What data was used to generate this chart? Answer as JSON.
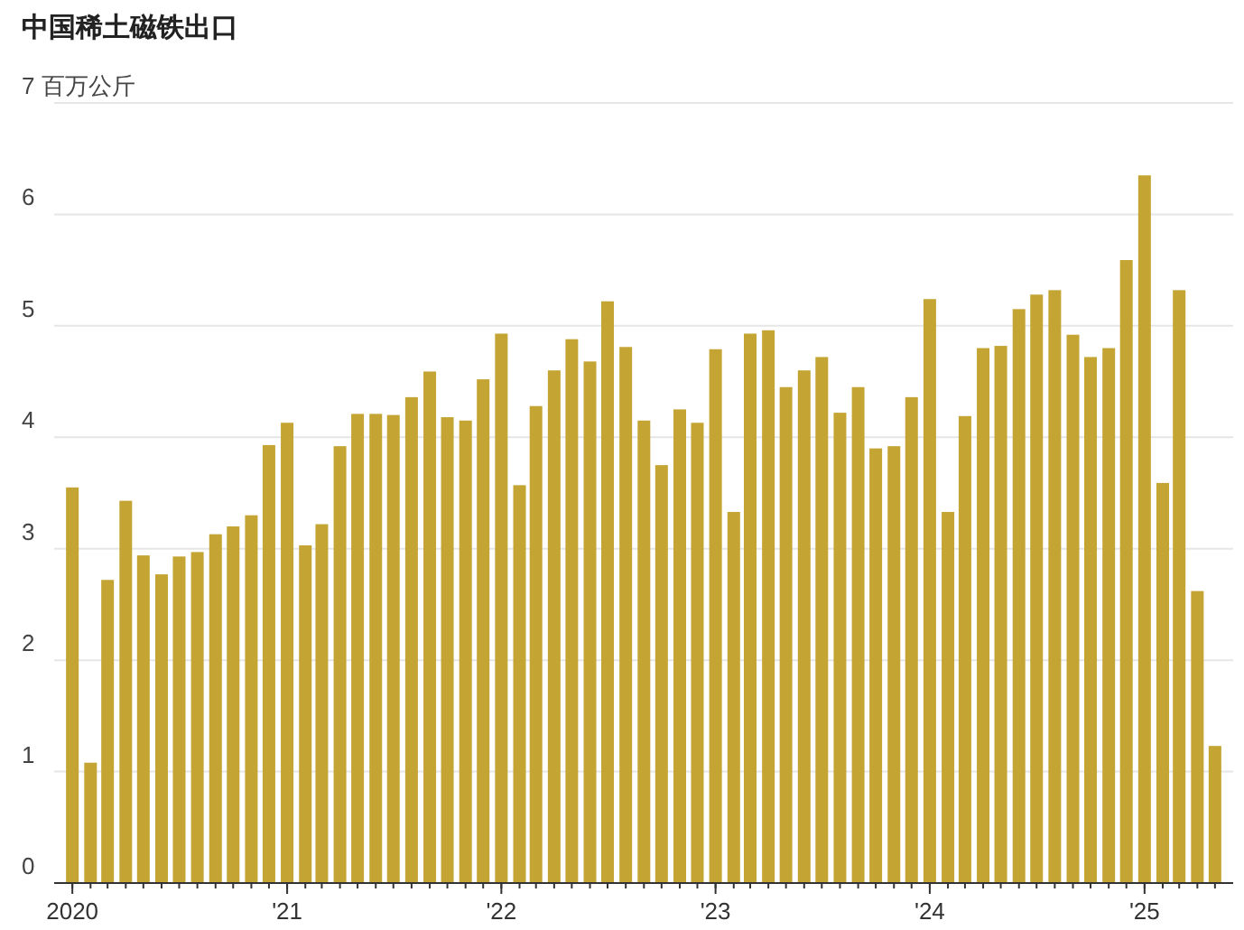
{
  "chart_data": {
    "type": "bar",
    "title": "中国稀土磁铁出口",
    "x": [
      "2020-01",
      "2020-02",
      "2020-03",
      "2020-04",
      "2020-05",
      "2020-06",
      "2020-07",
      "2020-08",
      "2020-09",
      "2020-10",
      "2020-11",
      "2020-12",
      "2021-01",
      "2021-02",
      "2021-03",
      "2021-04",
      "2021-05",
      "2021-06",
      "2021-07",
      "2021-08",
      "2021-09",
      "2021-10",
      "2021-11",
      "2021-12",
      "2022-01",
      "2022-02",
      "2022-03",
      "2022-04",
      "2022-05",
      "2022-06",
      "2022-07",
      "2022-08",
      "2022-09",
      "2022-10",
      "2022-11",
      "2022-12",
      "2023-01",
      "2023-02",
      "2023-03",
      "2023-04",
      "2023-05",
      "2023-06",
      "2023-07",
      "2023-08",
      "2023-09",
      "2023-10",
      "2023-11",
      "2023-12",
      "2024-01",
      "2024-02",
      "2024-03",
      "2024-04",
      "2024-05",
      "2024-06",
      "2024-07",
      "2024-08",
      "2024-09",
      "2024-10",
      "2024-11",
      "2024-12",
      "2025-01",
      "2025-02",
      "2025-03",
      "2025-04",
      "2025-05"
    ],
    "values": [
      3.55,
      1.08,
      2.72,
      3.43,
      2.94,
      2.77,
      2.93,
      2.97,
      3.13,
      3.2,
      3.3,
      3.93,
      4.13,
      3.03,
      3.22,
      3.92,
      4.21,
      4.21,
      4.2,
      4.36,
      4.59,
      4.18,
      4.15,
      4.52,
      4.93,
      3.57,
      4.28,
      4.6,
      4.88,
      4.68,
      5.22,
      4.81,
      4.15,
      3.75,
      4.25,
      4.13,
      4.79,
      3.33,
      4.93,
      4.96,
      4.45,
      4.6,
      4.72,
      4.22,
      4.45,
      3.9,
      3.92,
      4.36,
      5.24,
      3.33,
      4.19,
      4.8,
      4.82,
      5.15,
      5.28,
      5.32,
      4.92,
      4.72,
      4.8,
      5.59,
      6.35,
      3.59,
      5.32,
      2.62,
      1.23
    ],
    "color": "#c4a432",
    "xlim": [
      "2019-12-01",
      "2025-06-01"
    ],
    "xticks": [
      {
        "value": "2020-01",
        "label": "2020"
      },
      {
        "value": "2021-01",
        "label": "'21"
      },
      {
        "value": "2022-01",
        "label": "'22"
      },
      {
        "value": "2023-01",
        "label": "'23"
      },
      {
        "value": "2024-01",
        "label": "'24"
      },
      {
        "value": "2025-01",
        "label": "'25"
      }
    ],
    "ylim": [
      0,
      7
    ],
    "yticks": [
      0,
      1,
      2,
      3,
      4,
      5,
      6,
      {
        "value": 7,
        "label": "7 百万公斤"
      }
    ],
    "grid": "y"
  }
}
